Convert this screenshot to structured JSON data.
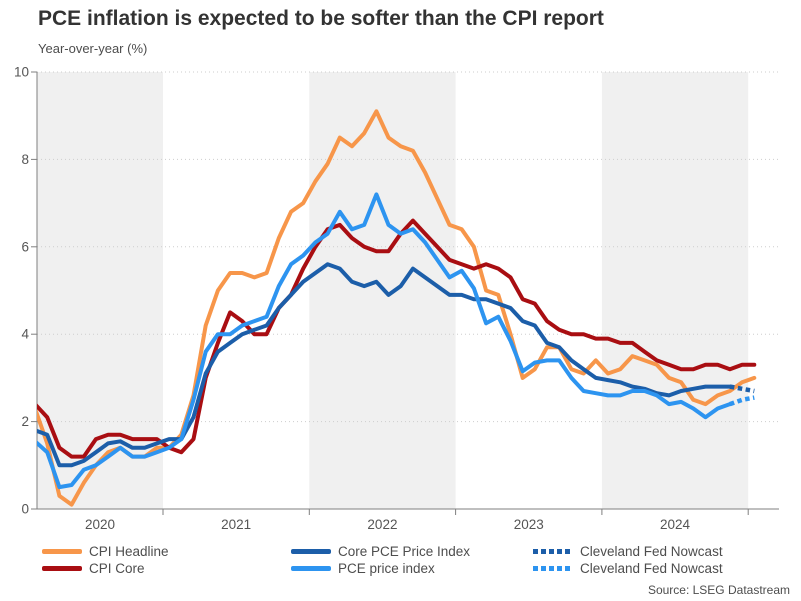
{
  "header": {
    "title": "PCE inflation is expected to be softer than the CPI report",
    "subtitle": "Year-over-year (%)"
  },
  "source_note": "Source: LSEG Datastream",
  "colors": {
    "cpi_headline": "#F7964A",
    "cpi_core": "#A90E12",
    "core_pce": "#1C5EA9",
    "pce": "#2D94F0",
    "band": "#F0F0F0",
    "grid": "#CDCDCD",
    "axis": "#7F7F7F",
    "tick_label": "#555555"
  },
  "chart_data": {
    "type": "line",
    "title": "PCE inflation is expected to be softer than the CPI report",
    "subtitle": "Year-over-year (%)",
    "frequency": "monthly",
    "ylim": [
      0,
      10
    ],
    "yticks": [
      0,
      2,
      4,
      6,
      8,
      10
    ],
    "xticks": [
      "2020",
      "2021",
      "2022",
      "2023",
      "2024"
    ],
    "grid": "dotted-horizontal",
    "band_years": [
      2020,
      2022,
      2024
    ],
    "legend_position": "bottom",
    "series": [
      {
        "name": "CPI Headline",
        "color": "#F7964A",
        "style": "solid",
        "start": "2020-01",
        "values": [
          2.5,
          2.3,
          1.5,
          0.3,
          0.1,
          0.6,
          1.0,
          1.3,
          1.4,
          1.2,
          1.2,
          1.4,
          1.4,
          1.7,
          2.6,
          4.2,
          5.0,
          5.4,
          5.4,
          5.3,
          5.4,
          6.2,
          6.8,
          7.0,
          7.5,
          7.9,
          8.5,
          8.3,
          8.6,
          9.1,
          8.5,
          8.3,
          8.2,
          7.7,
          7.1,
          6.5,
          6.4,
          6.0,
          5.0,
          4.9,
          4.0,
          3.0,
          3.2,
          3.7,
          3.7,
          3.2,
          3.1,
          3.4,
          3.1,
          3.2,
          3.5,
          3.4,
          3.3,
          3.0,
          2.9,
          2.5,
          2.4,
          2.6,
          2.7,
          2.9,
          3.0
        ]
      },
      {
        "name": "CPI Core",
        "color": "#A90E12",
        "style": "solid",
        "start": "2020-01",
        "values": [
          2.3,
          2.4,
          2.1,
          1.4,
          1.2,
          1.2,
          1.6,
          1.7,
          1.7,
          1.6,
          1.6,
          1.6,
          1.4,
          1.3,
          1.6,
          3.0,
          3.8,
          4.5,
          4.3,
          4.0,
          4.0,
          4.6,
          4.9,
          5.5,
          6.0,
          6.4,
          6.5,
          6.2,
          6.0,
          5.9,
          5.9,
          6.3,
          6.6,
          6.3,
          6.0,
          5.7,
          5.6,
          5.5,
          5.6,
          5.5,
          5.3,
          4.8,
          4.7,
          4.3,
          4.1,
          4.0,
          4.0,
          3.9,
          3.9,
          3.8,
          3.8,
          3.6,
          3.4,
          3.3,
          3.2,
          3.2,
          3.3,
          3.3,
          3.2,
          3.3,
          3.3
        ]
      },
      {
        "name": "Core PCE Price Index",
        "color": "#1C5EA9",
        "style": "solid",
        "start": "2020-01",
        "values": [
          1.7,
          1.8,
          1.7,
          1.0,
          1.0,
          1.1,
          1.3,
          1.5,
          1.55,
          1.4,
          1.4,
          1.5,
          1.6,
          1.6,
          2.1,
          3.1,
          3.6,
          3.8,
          4.0,
          4.1,
          4.2,
          4.6,
          4.9,
          5.2,
          5.4,
          5.6,
          5.5,
          5.2,
          5.1,
          5.2,
          4.9,
          5.1,
          5.5,
          5.3,
          5.1,
          4.9,
          4.9,
          4.8,
          4.8,
          4.7,
          4.6,
          4.3,
          4.2,
          3.8,
          3.7,
          3.4,
          3.2,
          3.0,
          2.95,
          2.9,
          2.8,
          2.75,
          2.65,
          2.6,
          2.7,
          2.75,
          2.8,
          2.8,
          2.8
        ]
      },
      {
        "name": "PCE price index",
        "color": "#2D94F0",
        "style": "solid",
        "start": "2020-01",
        "values": [
          1.6,
          1.55,
          1.3,
          0.5,
          0.55,
          0.9,
          1.0,
          1.2,
          1.4,
          1.2,
          1.2,
          1.3,
          1.4,
          1.6,
          2.5,
          3.6,
          4.0,
          4.0,
          4.2,
          4.3,
          4.4,
          5.1,
          5.6,
          5.8,
          6.1,
          6.3,
          6.8,
          6.4,
          6.5,
          7.2,
          6.5,
          6.3,
          6.4,
          6.1,
          5.7,
          5.3,
          5.45,
          5.05,
          4.25,
          4.4,
          3.85,
          3.15,
          3.35,
          3.4,
          3.4,
          3.0,
          2.7,
          2.65,
          2.6,
          2.6,
          2.7,
          2.7,
          2.6,
          2.4,
          2.45,
          2.3,
          2.1,
          2.3,
          2.4
        ]
      },
      {
        "name": "Cleveland Fed Nowcast",
        "color": "#1C5EA9",
        "style": "dotted",
        "start": "2024-11",
        "values": [
          2.8,
          2.75,
          2.7
        ]
      },
      {
        "name": "Cleveland Fed Nowcast",
        "color": "#2D94F0",
        "style": "dotted",
        "start": "2024-11",
        "values": [
          2.4,
          2.5,
          2.55
        ]
      }
    ],
    "source": "Source: LSEG Datastream"
  }
}
